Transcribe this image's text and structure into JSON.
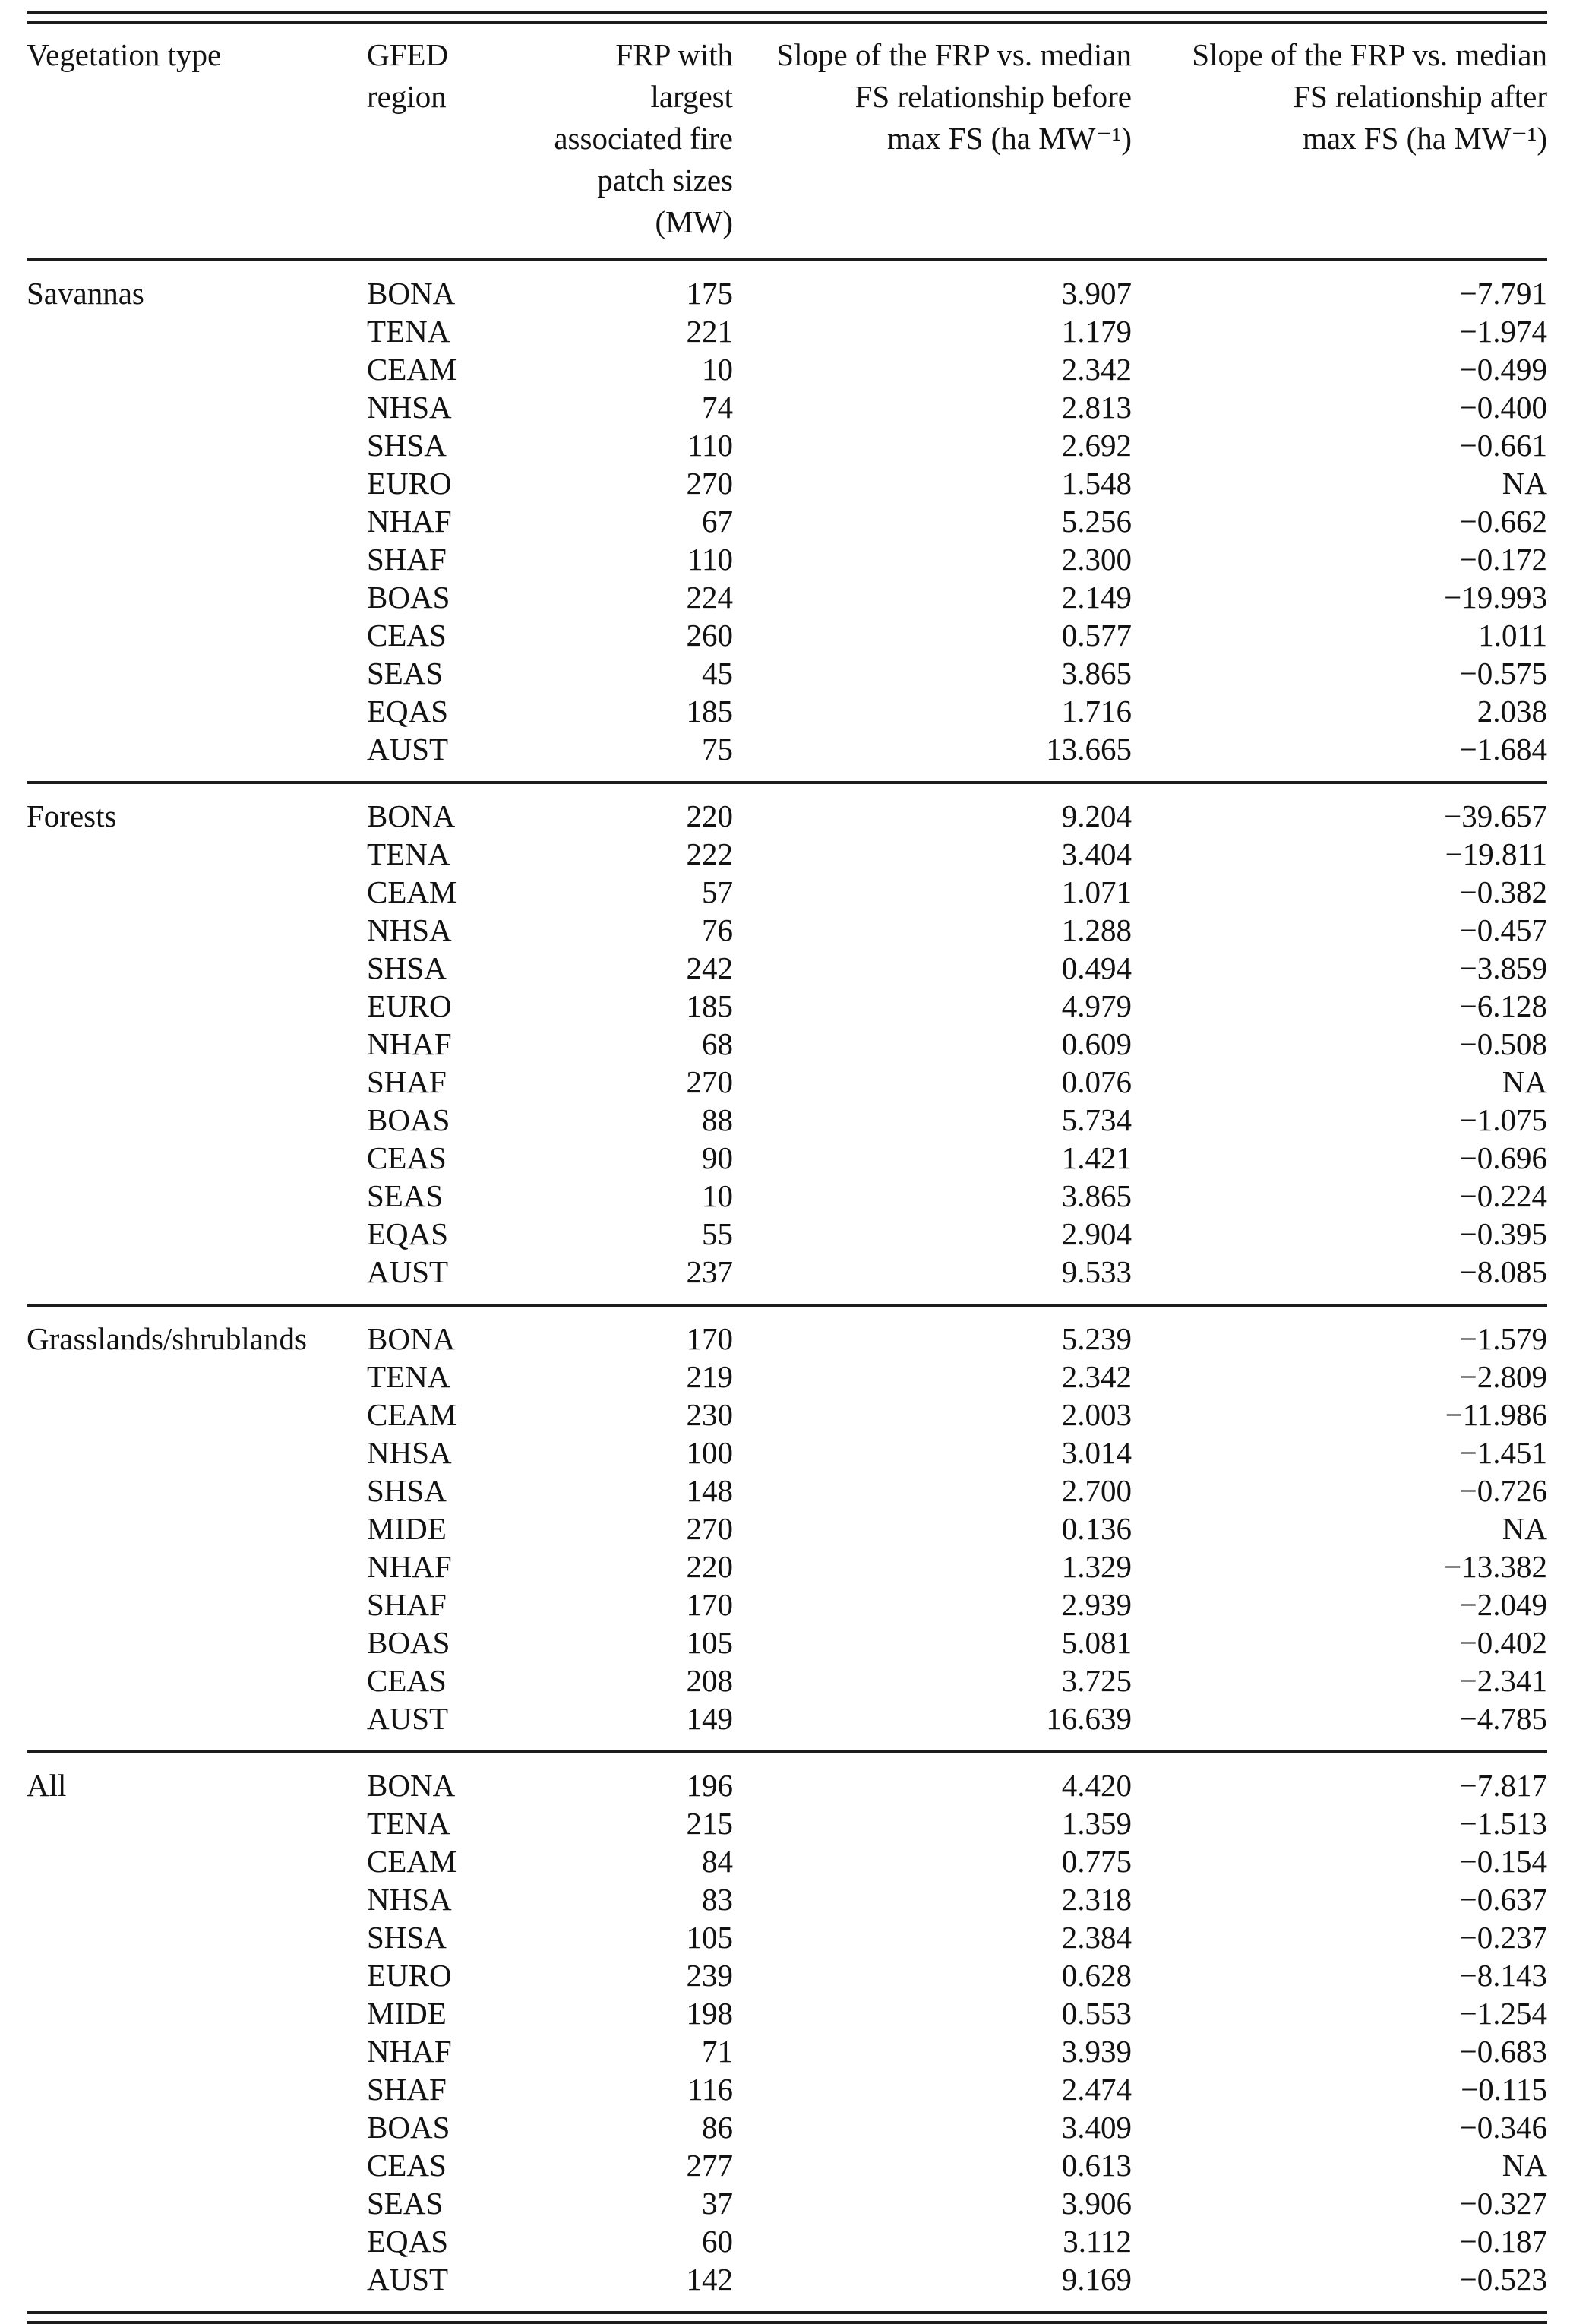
{
  "table": {
    "headers": [
      "Vegetation type",
      "GFED\nregion",
      "FRP with largest\nassociated fire\npatch sizes (MW)",
      "Slope of the FRP vs. median\nFS relationship before\nmax FS (ha MW⁻¹)",
      "Slope of the FRP vs. median\nFS relationship after\nmax FS (ha MW⁻¹)"
    ],
    "groups": [
      {
        "vegetation_type": "Savannas",
        "rows": [
          [
            "BONA",
            "175",
            "3.907",
            "−7.791"
          ],
          [
            "TENA",
            "221",
            "1.179",
            "−1.974"
          ],
          [
            "CEAM",
            "10",
            "2.342",
            "−0.499"
          ],
          [
            "NHSA",
            "74",
            "2.813",
            "−0.400"
          ],
          [
            "SHSA",
            "110",
            "2.692",
            "−0.661"
          ],
          [
            "EURO",
            "270",
            "1.548",
            "NA"
          ],
          [
            "NHAF",
            "67",
            "5.256",
            "−0.662"
          ],
          [
            "SHAF",
            "110",
            "2.300",
            "−0.172"
          ],
          [
            "BOAS",
            "224",
            "2.149",
            "−19.993"
          ],
          [
            "CEAS",
            "260",
            "0.577",
            "1.011"
          ],
          [
            "SEAS",
            "45",
            "3.865",
            "−0.575"
          ],
          [
            "EQAS",
            "185",
            "1.716",
            "2.038"
          ],
          [
            "AUST",
            "75",
            "13.665",
            "−1.684"
          ]
        ]
      },
      {
        "vegetation_type": "Forests",
        "rows": [
          [
            "BONA",
            "220",
            "9.204",
            "−39.657"
          ],
          [
            "TENA",
            "222",
            "3.404",
            "−19.811"
          ],
          [
            "CEAM",
            "57",
            "1.071",
            "−0.382"
          ],
          [
            "NHSA",
            "76",
            "1.288",
            "−0.457"
          ],
          [
            "SHSA",
            "242",
            "0.494",
            "−3.859"
          ],
          [
            "EURO",
            "185",
            "4.979",
            "−6.128"
          ],
          [
            "NHAF",
            "68",
            "0.609",
            "−0.508"
          ],
          [
            "SHAF",
            "270",
            "0.076",
            "NA"
          ],
          [
            "BOAS",
            "88",
            "5.734",
            "−1.075"
          ],
          [
            "CEAS",
            "90",
            "1.421",
            "−0.696"
          ],
          [
            "SEAS",
            "10",
            "3.865",
            "−0.224"
          ],
          [
            "EQAS",
            "55",
            "2.904",
            "−0.395"
          ],
          [
            "AUST",
            "237",
            "9.533",
            "−8.085"
          ]
        ]
      },
      {
        "vegetation_type": "Grasslands/shrublands",
        "rows": [
          [
            "BONA",
            "170",
            "5.239",
            "−1.579"
          ],
          [
            "TENA",
            "219",
            "2.342",
            "−2.809"
          ],
          [
            "CEAM",
            "230",
            "2.003",
            "−11.986"
          ],
          [
            "NHSA",
            "100",
            "3.014",
            "−1.451"
          ],
          [
            "SHSA",
            "148",
            "2.700",
            "−0.726"
          ],
          [
            "MIDE",
            "270",
            "0.136",
            "NA"
          ],
          [
            "NHAF",
            "220",
            "1.329",
            "−13.382"
          ],
          [
            "SHAF",
            "170",
            "2.939",
            "−2.049"
          ],
          [
            "BOAS",
            "105",
            "5.081",
            "−0.402"
          ],
          [
            "CEAS",
            "208",
            "3.725",
            "−2.341"
          ],
          [
            "AUST",
            "149",
            "16.639",
            "−4.785"
          ]
        ]
      },
      {
        "vegetation_type": "All",
        "rows": [
          [
            "BONA",
            "196",
            "4.420",
            "−7.817"
          ],
          [
            "TENA",
            "215",
            "1.359",
            "−1.513"
          ],
          [
            "CEAM",
            "84",
            "0.775",
            "−0.154"
          ],
          [
            "NHSA",
            "83",
            "2.318",
            "−0.637"
          ],
          [
            "SHSA",
            "105",
            "2.384",
            "−0.237"
          ],
          [
            "EURO",
            "239",
            "0.628",
            "−8.143"
          ],
          [
            "MIDE",
            "198",
            "0.553",
            "−1.254"
          ],
          [
            "NHAF",
            "71",
            "3.939",
            "−0.683"
          ],
          [
            "SHAF",
            "116",
            "2.474",
            "−0.115"
          ],
          [
            "BOAS",
            "86",
            "3.409",
            "−0.346"
          ],
          [
            "CEAS",
            "277",
            "0.613",
            "NA"
          ],
          [
            "SEAS",
            "37",
            "3.906",
            "−0.327"
          ],
          [
            "EQAS",
            "60",
            "3.112",
            "−0.187"
          ],
          [
            "AUST",
            "142",
            "9.169",
            "−0.523"
          ]
        ]
      }
    ]
  }
}
